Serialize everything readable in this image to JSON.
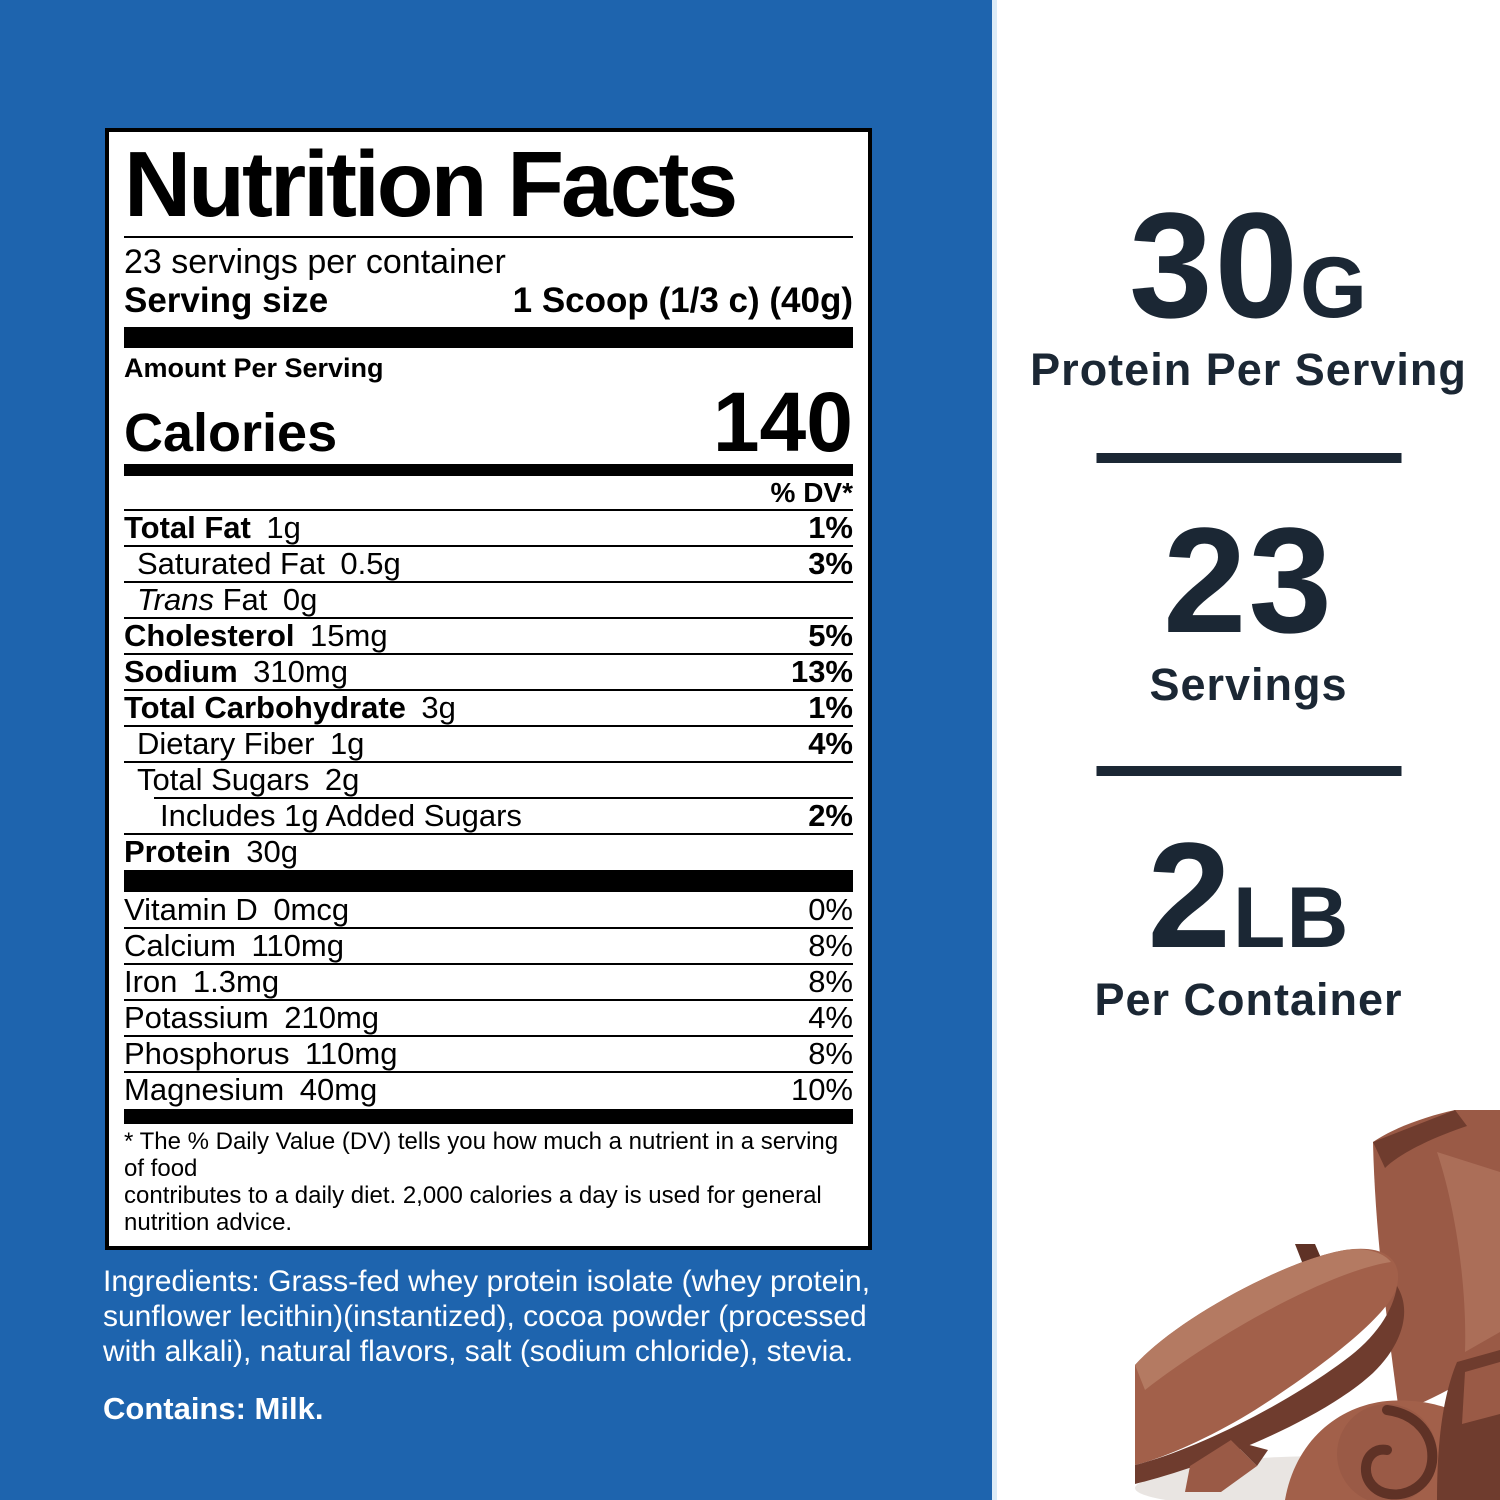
{
  "colors": {
    "background_blue": "#1e64ae",
    "panel_white": "#ffffff",
    "navy_text": "#1b2734",
    "chocolate_deep": "#5f3226",
    "chocolate_dark": "#6f3c2e",
    "chocolate_mid": "#9a5a46",
    "chocolate_body": "#a2604a",
    "chocolate_light": "#b47a62",
    "shadow_gray": "#e9e5e2"
  },
  "label": {
    "title": "Nutrition Facts",
    "servings_per_container": "23 servings per container",
    "serving_size_label": "Serving size",
    "serving_size_value": "1 Scoop (1/3 c) (40g)",
    "amount_header": "Amount Per Serving",
    "calories_label": "Calories",
    "calories_value": "140",
    "dv_header": "% DV*",
    "nutrient_rows": [
      {
        "bold": "Total Fat",
        "amount": "1g",
        "dv": "1%",
        "dv_bold": true,
        "indent": 0
      },
      {
        "plain": "Saturated Fat",
        "amount": "0.5g",
        "dv": "3%",
        "dv_bold": true,
        "indent": 1
      },
      {
        "italic": "Trans",
        "plain": " Fat",
        "amount": "0g",
        "dv": "",
        "indent": 1
      },
      {
        "bold": "Cholesterol",
        "amount": "15mg",
        "dv": "5%",
        "dv_bold": true,
        "indent": 0
      },
      {
        "bold": "Sodium",
        "amount": "310mg",
        "dv": "13%",
        "dv_bold": true,
        "indent": 0
      },
      {
        "bold": "Total Carbohydrate",
        "amount": "3g",
        "dv": "1%",
        "dv_bold": true,
        "indent": 0
      },
      {
        "plain": "Dietary Fiber",
        "amount": "1g",
        "dv": "4%",
        "dv_bold": true,
        "indent": 1
      },
      {
        "plain": "Total Sugars",
        "amount": "2g",
        "dv": "",
        "indent": 1
      },
      {
        "plain": "Includes 1g Added Sugars",
        "amount": "",
        "dv": "2%",
        "dv_bold": true,
        "indent": 2,
        "rule_inset": true
      },
      {
        "bold": "Protein",
        "amount": "30g",
        "dv": "",
        "indent": 0
      }
    ],
    "micronutrient_rows": [
      {
        "plain": "Vitamin D",
        "amount": "0mcg",
        "dv": "0%"
      },
      {
        "plain": "Calcium",
        "amount": "110mg",
        "dv": "8%"
      },
      {
        "plain": "Iron",
        "amount": "1.3mg",
        "dv": "8%"
      },
      {
        "plain": "Potassium",
        "amount": "210mg",
        "dv": "4%"
      },
      {
        "plain": "Phosphorus",
        "amount": "110mg",
        "dv": "8%"
      },
      {
        "plain": "Magnesium",
        "amount": "40mg",
        "dv": "10%"
      }
    ],
    "footnote": "* The % Daily Value (DV) tells you how much a nutrient in a serving of food\ncontributes to a daily diet. 2,000 calories a day is used for general\nnutrition advice."
  },
  "ingredients_text": "Ingredients: Grass-fed whey protein isolate (whey protein,\nsunflower lecithin)(instantized), cocoa powder (processed\nwith alkali), natural flavors, salt (sodium chloride), stevia.",
  "contains_text": "Contains: Milk.",
  "highlights": [
    {
      "value": "30",
      "unit": "G",
      "label": "Protein Per Serving"
    },
    {
      "value": "23",
      "unit": "",
      "label": "Servings"
    },
    {
      "value": "2",
      "unit": "LB",
      "label": "Per Container"
    }
  ]
}
